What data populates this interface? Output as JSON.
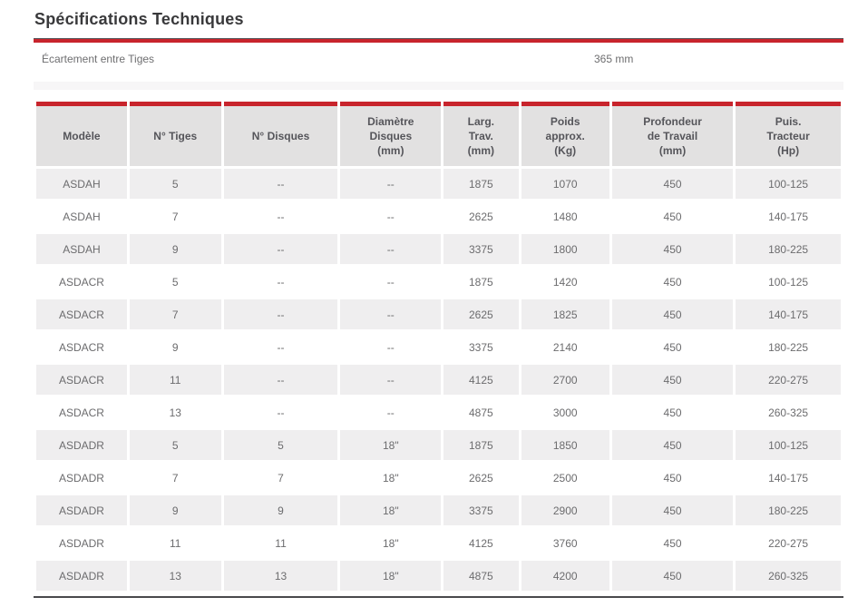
{
  "page": {
    "title": "Spécifications Techniques"
  },
  "spec_section": {
    "label": "Écartement entre Tiges",
    "value": "365 mm"
  },
  "table": {
    "columns": [
      {
        "id": "modele",
        "label": "Modèle"
      },
      {
        "id": "n-tiges",
        "label": "N° Tiges"
      },
      {
        "id": "n-disques",
        "label": "N° Disques"
      },
      {
        "id": "diametre-disques",
        "label": "Diamètre\nDisques\n(mm)"
      },
      {
        "id": "larg-trav",
        "label": "Larg.\nTrav.\n(mm)"
      },
      {
        "id": "poids-approx",
        "label": "Poids\napprox.\n(Kg)"
      },
      {
        "id": "profondeur-travail",
        "label": "Profondeur\nde Travail\n(mm)"
      },
      {
        "id": "puis-tracteur",
        "label": "Puis.\nTracteur\n(Hp)"
      }
    ],
    "rows": [
      [
        "ASDAH",
        "5",
        "--",
        "--",
        "1875",
        "1070",
        "450",
        "100-125"
      ],
      [
        "ASDAH",
        "7",
        "--",
        "--",
        "2625",
        "1480",
        "450",
        "140-175"
      ],
      [
        "ASDAH",
        "9",
        "--",
        "--",
        "3375",
        "1800",
        "450",
        "180-225"
      ],
      [
        "ASDACR",
        "5",
        "--",
        "--",
        "1875",
        "1420",
        "450",
        "100-125"
      ],
      [
        "ASDACR",
        "7",
        "--",
        "--",
        "2625",
        "1825",
        "450",
        "140-175"
      ],
      [
        "ASDACR",
        "9",
        "--",
        "--",
        "3375",
        "2140",
        "450",
        "180-225"
      ],
      [
        "ASDACR",
        "11",
        "--",
        "--",
        "4125",
        "2700",
        "450",
        "220-275"
      ],
      [
        "ASDACR",
        "13",
        "--",
        "--",
        "4875",
        "3000",
        "450",
        "260-325"
      ],
      [
        "ASDADR",
        "5",
        "5",
        "18\"",
        "1875",
        "1850",
        "450",
        "100-125"
      ],
      [
        "ASDADR",
        "7",
        "7",
        "18\"",
        "2625",
        "2500",
        "450",
        "140-175"
      ],
      [
        "ASDADR",
        "9",
        "9",
        "18\"",
        "3375",
        "2900",
        "450",
        "180-225"
      ],
      [
        "ASDADR",
        "11",
        "11",
        "18\"",
        "4125",
        "3760",
        "450",
        "220-275"
      ],
      [
        "ASDADR",
        "13",
        "13",
        "18\"",
        "4875",
        "4200",
        "450",
        "260-325"
      ]
    ]
  },
  "colors": {
    "accent_red": "#c8242c",
    "header_bg": "#e2e1e1",
    "row_alt_bg": "#efeeef",
    "rule_dark": "#4a4a4d",
    "body_text": "#6c6c6e",
    "header_text": "#55555a",
    "title_text": "#39393b"
  }
}
